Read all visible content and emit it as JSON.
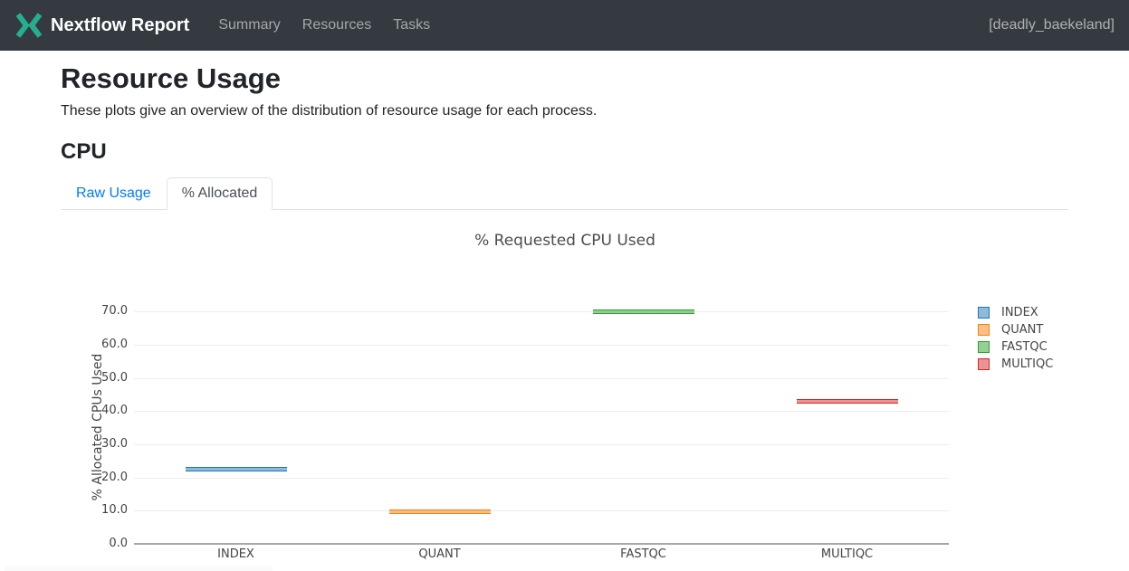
{
  "navbar": {
    "brand": "Nextflow Report",
    "logo_color": "#26AE90",
    "items": [
      {
        "label": "Summary"
      },
      {
        "label": "Resources"
      },
      {
        "label": "Tasks"
      }
    ],
    "run_name": "[deadly_baekeland]"
  },
  "page": {
    "title": "Resource Usage",
    "description": "These plots give an overview of the distribution of resource usage for each process.",
    "section_title": "CPU"
  },
  "tabs": [
    {
      "label": "Raw Usage",
      "active": false
    },
    {
      "label": "% Allocated",
      "active": true
    }
  ],
  "theme": {
    "navbar_bg": "#343a40",
    "link_blue": "#007bff",
    "tab_border": "#dee2e6"
  },
  "chart_data": {
    "type": "box",
    "title": "% Requested CPU Used",
    "xlabel": "",
    "ylabel": "% Allocated CPUs Used",
    "categories": [
      "INDEX",
      "QUANT",
      "FASTQC",
      "MULTIQC"
    ],
    "values": [
      22.6,
      9.8,
      69.8,
      43.0
    ],
    "series_colors": [
      "#1f77b4",
      "#ff7f0e",
      "#2ca02c",
      "#d62728"
    ],
    "yticks": [
      0,
      10,
      20,
      30,
      40,
      50,
      60,
      70
    ],
    "ytick_labels": [
      "0.0",
      "10.0",
      "20.0",
      "30.0",
      "40.0",
      "50.0",
      "60.0",
      "70.0"
    ],
    "ylim": [
      0,
      76.5
    ],
    "grid": true,
    "legend": [
      "INDEX",
      "QUANT",
      "FASTQC",
      "MULTIQC"
    ],
    "legend_position": "right"
  }
}
